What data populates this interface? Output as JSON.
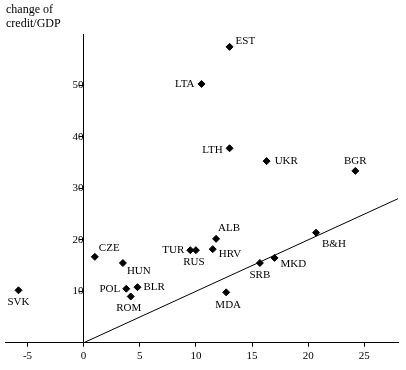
{
  "chart_data": {
    "type": "scatter",
    "y_label": "change of credit/GDP",
    "color": "#000000",
    "marker": "diamond",
    "grid": false,
    "xlim": [
      -7,
      28
    ],
    "ylim": [
      0,
      60
    ],
    "xticks": [
      -5,
      0,
      5,
      10,
      15,
      20,
      25
    ],
    "yticks": [
      10,
      20,
      30,
      40,
      50
    ],
    "y_axis_at": 0,
    "points": [
      {
        "name": "EST",
        "x": 13,
        "y": 57.5
      },
      {
        "name": "LTA",
        "x": 10.5,
        "y": 50.3
      },
      {
        "name": "LTH",
        "x": 13,
        "y": 37.8
      },
      {
        "name": "UKR",
        "x": 16.3,
        "y": 35.3
      },
      {
        "name": "BGR",
        "x": 24.2,
        "y": 33.4
      },
      {
        "name": "ALB",
        "x": 11.8,
        "y": 20.2
      },
      {
        "name": "TUR",
        "x": 9.5,
        "y": 18
      },
      {
        "name": "RUS",
        "x": 10,
        "y": 18
      },
      {
        "name": "HRV",
        "x": 11.5,
        "y": 18.2
      },
      {
        "name": "CZE",
        "x": 1,
        "y": 16.7
      },
      {
        "name": "HUN",
        "x": 3.5,
        "y": 15.5
      },
      {
        "name": "POL",
        "x": 3.8,
        "y": 10.5
      },
      {
        "name": "BLR",
        "x": 4.8,
        "y": 10.8
      },
      {
        "name": "ROM",
        "x": 4.2,
        "y": 9
      },
      {
        "name": "SVK",
        "x": -5.8,
        "y": 10.2
      },
      {
        "name": "SRB",
        "x": 15.7,
        "y": 15.5
      },
      {
        "name": "MKD",
        "x": 17,
        "y": 16.5
      },
      {
        "name": "MDA",
        "x": 12.7,
        "y": 9.8
      },
      {
        "name": "B&H",
        "x": 20.7,
        "y": 21.4
      }
    ],
    "diagonal": {
      "x": [
        0,
        28
      ],
      "y": [
        0,
        28
      ]
    }
  }
}
